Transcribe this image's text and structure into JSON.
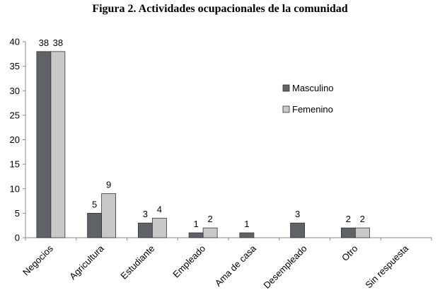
{
  "title": "Figura 2. Actividades ocupacionales de la comunidad",
  "chart_data": {
    "type": "bar",
    "title": "Figura 2. Actividades ocupacionales de la comunidad",
    "categories": [
      "Negocios",
      "Agricultura",
      "Estudiante",
      "Empleado",
      "Ama de casa",
      "Desempleado",
      "Otro",
      "Sin respuesta"
    ],
    "series": [
      {
        "name": "Masculino",
        "values": [
          38,
          5,
          3,
          1,
          1,
          3,
          2,
          null
        ],
        "color": "#5f6368"
      },
      {
        "name": "Femenino",
        "values": [
          38,
          9,
          4,
          2,
          null,
          null,
          2,
          null
        ],
        "color": "#c8c8c8"
      }
    ],
    "ylim": [
      0,
      40
    ],
    "yticks": [
      0,
      5,
      10,
      15,
      20,
      25,
      30,
      35,
      40
    ],
    "xlabel": "",
    "ylabel": "",
    "grid": false,
    "legend_position": "right"
  }
}
